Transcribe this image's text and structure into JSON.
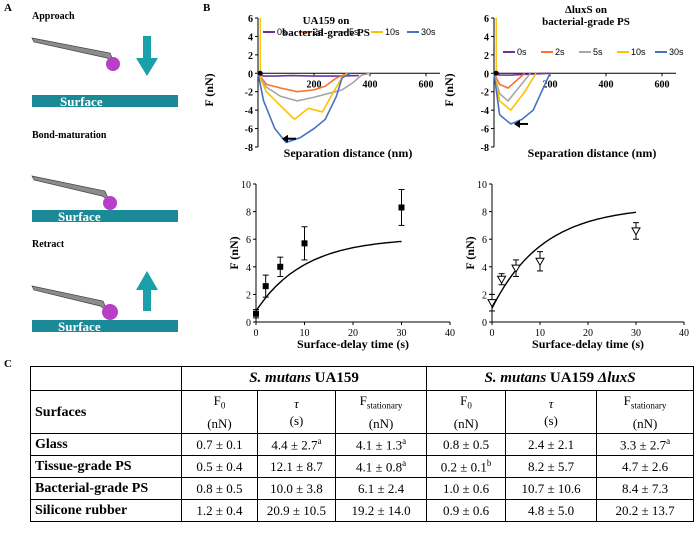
{
  "panels": {
    "a": "A",
    "b": "B",
    "c": "C"
  },
  "schematic": {
    "steps": [
      "Approach",
      "Bond-maturation",
      "Retract"
    ],
    "surface_label": "Surface",
    "colors": {
      "surface": "#1a8a96",
      "arrow": "#1aa0ab",
      "cantilever": "#8c8c8c",
      "bacterium": "#b840c8"
    }
  },
  "curve_legend": [
    "0s",
    "2s",
    "5s",
    "10s",
    "30s"
  ],
  "curve_colors": [
    "#7030a0",
    "#ff6f2f",
    "#a6a6a6",
    "#ffc000",
    "#4472c4"
  ],
  "chart_data": [
    {
      "type": "line",
      "title_line1": "UA159 on",
      "title_line2": "bacterial-grade PS",
      "xlabel": "Separation distance (nm)",
      "ylabel": "F (nN)",
      "xlim": [
        0,
        650
      ],
      "ylim": [
        -8,
        6
      ],
      "xticks": [
        200,
        400,
        600
      ],
      "yticks": [
        6,
        4,
        2,
        0,
        -2,
        -4,
        -6,
        -8
      ],
      "series": [
        {
          "name": "0s",
          "x": [
            0,
            20,
            60,
            120,
            200,
            280,
            360
          ],
          "y": [
            0,
            -0.3,
            -0.3,
            -0.25,
            -0.3,
            -0.3,
            -0.25
          ]
        },
        {
          "name": "2s",
          "x": [
            0,
            30,
            80,
            140,
            200,
            240,
            280,
            320
          ],
          "y": [
            0,
            -1.2,
            -1.6,
            -2,
            -1.8,
            -1.4,
            -0.5,
            0
          ]
        },
        {
          "name": "5s",
          "x": [
            0,
            30,
            80,
            140,
            200,
            250,
            300,
            340,
            370,
            400
          ],
          "y": [
            0,
            -1.5,
            -2.5,
            -3.0,
            -2.6,
            -2.2,
            -1.8,
            -1.0,
            -0.2,
            0
          ]
        },
        {
          "name": "10s",
          "x": [
            0,
            30,
            80,
            130,
            180,
            230,
            270,
            300,
            320
          ],
          "y": [
            0,
            -2,
            -3.5,
            -5,
            -3.8,
            -4.2,
            -2,
            -0.5,
            0
          ]
        },
        {
          "name": "30s",
          "x": [
            0,
            20,
            60,
            100,
            150,
            200,
            240,
            280,
            300,
            330
          ],
          "y": [
            0,
            -3,
            -6,
            -7.5,
            -7,
            -6,
            -5,
            -2.5,
            -0.5,
            0
          ]
        }
      ]
    },
    {
      "type": "line",
      "title_line1": "ΔluxS on",
      "title_line2": "bacterial-grade PS",
      "xlabel": "Separation distance (nm)",
      "ylabel": "F (nN)",
      "xlim": [
        0,
        650
      ],
      "ylim": [
        -8,
        6
      ],
      "xticks": [
        200,
        400,
        600
      ],
      "yticks": [
        6,
        4,
        2,
        0,
        -2,
        -4,
        -6,
        -8
      ],
      "series": [
        {
          "name": "0s",
          "x": [
            0,
            20,
            60,
            120,
            200
          ],
          "y": [
            0,
            -0.2,
            -0.2,
            -0.1,
            0
          ]
        },
        {
          "name": "2s",
          "x": [
            0,
            20,
            50,
            80,
            110
          ],
          "y": [
            0,
            -1.2,
            -1.6,
            -0.8,
            0
          ]
        },
        {
          "name": "5s",
          "x": [
            0,
            20,
            50,
            90,
            130
          ],
          "y": [
            0,
            -2.2,
            -3,
            -1.5,
            0
          ]
        },
        {
          "name": "10s",
          "x": [
            0,
            20,
            60,
            110,
            150
          ],
          "y": [
            0,
            -3,
            -4,
            -2,
            0
          ]
        },
        {
          "name": "30s",
          "x": [
            0,
            20,
            60,
            100,
            140,
            170,
            200
          ],
          "y": [
            0,
            -4.5,
            -5.5,
            -5,
            -4,
            -2,
            0
          ]
        }
      ]
    },
    {
      "type": "scatter",
      "xlabel": "Surface-delay time (s)",
      "ylabel": "F (nN)",
      "xlim": [
        0,
        40
      ],
      "ylim": [
        0,
        10
      ],
      "xticks": [
        0,
        10,
        20,
        30,
        40
      ],
      "yticks": [
        0,
        2,
        4,
        6,
        8,
        10
      ],
      "x": [
        0,
        2,
        5,
        10,
        30
      ],
      "y": [
        0.6,
        2.6,
        4.0,
        5.7,
        8.3
      ],
      "err": [
        0.3,
        0.8,
        0.7,
        1.2,
        1.3
      ],
      "fit": {
        "f0": 0.8,
        "fstat": 6.1,
        "tau": 10.0
      }
    },
    {
      "type": "scatter",
      "xlabel": "Surface-delay time (s)",
      "ylabel": "F (nN)",
      "xlim": [
        0,
        40
      ],
      "ylim": [
        0,
        10
      ],
      "xticks": [
        0,
        10,
        20,
        30,
        40
      ],
      "yticks": [
        0,
        2,
        4,
        6,
        8,
        10
      ],
      "x": [
        0,
        2,
        5,
        10,
        30
      ],
      "y": [
        1.4,
        3.1,
        3.9,
        4.4,
        6.6
      ],
      "err": [
        0.6,
        0.4,
        0.6,
        0.7,
        0.6
      ],
      "fit": {
        "f0": 1.0,
        "fstat": 8.4,
        "tau": 10.7
      }
    }
  ],
  "table": {
    "group1": {
      "species": "S. mutans",
      "strain": "UA159"
    },
    "group2": {
      "species": "S. mutans",
      "strain": "UA159 ",
      "mutant": "ΔluxS"
    },
    "corner": "Surfaces",
    "headers": [
      {
        "sym": "F",
        "sub": "0",
        "unit": "(nN)"
      },
      {
        "sym": "τ",
        "sub": "",
        "unit": "(s)"
      },
      {
        "sym": "F",
        "sub": "stationary",
        "unit": "(nN)"
      },
      {
        "sym": "F",
        "sub": "0",
        "unit": "(nN)"
      },
      {
        "sym": "τ",
        "sub": "",
        "unit": "(s)"
      },
      {
        "sym": "F",
        "sub": "stationary",
        "unit": "(nN)"
      }
    ],
    "rows": [
      {
        "surface": "Glass",
        "cells": [
          {
            "v": "0.7 ± 0.1",
            "sup": ""
          },
          {
            "v": "4.4 ± 2.7",
            "sup": "a"
          },
          {
            "v": "4.1 ± 1.3",
            "sup": "a"
          },
          {
            "v": "0.8 ± 0.5",
            "sup": ""
          },
          {
            "v": "2.4 ± 2.1",
            "sup": ""
          },
          {
            "v": "3.3 ± 2.7",
            "sup": "a"
          }
        ]
      },
      {
        "surface": "Tissue-grade PS",
        "cells": [
          {
            "v": "0.5 ± 0.4",
            "sup": ""
          },
          {
            "v": "12.1 ± 8.7",
            "sup": ""
          },
          {
            "v": "4.1 ± 0.8",
            "sup": "a"
          },
          {
            "v": "0.2 ± 0.1",
            "sup": "b"
          },
          {
            "v": "8.2 ± 5.7",
            "sup": ""
          },
          {
            "v": "4.7 ± 2.6",
            "sup": ""
          }
        ]
      },
      {
        "surface": "Bacterial-grade PS",
        "cells": [
          {
            "v": "0.8 ± 0.5",
            "sup": ""
          },
          {
            "v": "10.0 ± 3.8",
            "sup": ""
          },
          {
            "v": "6.1 ± 2.4",
            "sup": ""
          },
          {
            "v": "1.0 ± 0.6",
            "sup": ""
          },
          {
            "v": "10.7 ± 10.6",
            "sup": ""
          },
          {
            "v": "8.4 ± 7.3",
            "sup": ""
          }
        ]
      },
      {
        "surface": "Silicone rubber",
        "cells": [
          {
            "v": "1.2 ± 0.4",
            "sup": ""
          },
          {
            "v": "20.9 ± 10.5",
            "sup": ""
          },
          {
            "v": "19.2 ± 14.0",
            "sup": ""
          },
          {
            "v": "0.9 ± 0.6",
            "sup": ""
          },
          {
            "v": "4.8 ± 5.0",
            "sup": ""
          },
          {
            "v": "20.2 ± 13.7",
            "sup": ""
          }
        ]
      }
    ]
  }
}
